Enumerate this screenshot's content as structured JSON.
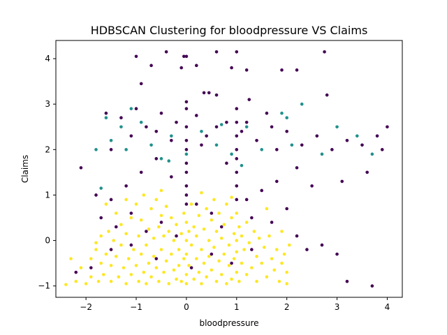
{
  "chart_data": {
    "type": "scatter",
    "title": "HDBSCAN Clustering for bloodpressure VS Claims",
    "xlabel": "bloodpressure",
    "ylabel": "Claims",
    "xlim": [
      -2.6,
      4.3
    ],
    "ylim": [
      -1.25,
      4.4
    ],
    "xticks": [
      -2,
      -1,
      0,
      1,
      2,
      3,
      4
    ],
    "yticks": [
      -1,
      0,
      1,
      2,
      3,
      4
    ],
    "grid": false,
    "legend": "none",
    "colors": {
      "noise": "#440154",
      "cluster_a": "#21918c",
      "cluster_b": "#fde725"
    },
    "series": [
      {
        "color_key": "cluster_b",
        "points": [
          [
            -2.4,
            -0.97
          ],
          [
            -2.2,
            -0.9
          ],
          [
            -2.1,
            -0.6
          ],
          [
            -2.0,
            -0.95
          ],
          [
            -1.9,
            -0.4
          ],
          [
            -1.9,
            -0.8
          ],
          [
            -1.8,
            -0.2
          ],
          [
            -1.75,
            -0.9
          ],
          [
            -1.7,
            -0.5
          ],
          [
            -1.7,
            0.1
          ],
          [
            -1.65,
            -0.75
          ],
          [
            -1.6,
            -0.3
          ],
          [
            -1.55,
            0.2
          ],
          [
            -1.5,
            -0.9
          ],
          [
            -1.5,
            -0.55
          ],
          [
            -1.45,
            0.0
          ],
          [
            -1.4,
            -0.35
          ],
          [
            -1.4,
            0.6
          ],
          [
            -1.35,
            -0.8
          ],
          [
            -1.3,
            -0.1
          ],
          [
            -1.3,
            0.35
          ],
          [
            -1.25,
            -0.6
          ],
          [
            -1.2,
            -0.95
          ],
          [
            -1.2,
            0.15
          ],
          [
            -1.15,
            -0.4
          ],
          [
            -1.1,
            -0.75
          ],
          [
            -1.1,
            0.5
          ],
          [
            -1.05,
            -0.2
          ],
          [
            -1.0,
            0.8
          ],
          [
            -1.0,
            -0.55
          ],
          [
            -0.95,
            -0.9
          ],
          [
            -0.95,
            0.1
          ],
          [
            -0.9,
            -0.3
          ],
          [
            -0.9,
            0.45
          ],
          [
            -0.85,
            -0.7
          ],
          [
            -0.85,
            1.0
          ],
          [
            -0.8,
            -0.1
          ],
          [
            -0.8,
            -0.95
          ],
          [
            -0.75,
            0.25
          ],
          [
            -0.75,
            -0.5
          ],
          [
            -0.7,
            0.7
          ],
          [
            -0.7,
            -0.8
          ],
          [
            -0.65,
            0.05
          ],
          [
            -0.65,
            -0.35
          ],
          [
            -0.6,
            0.9
          ],
          [
            -0.6,
            -0.6
          ],
          [
            -0.55,
            0.3
          ],
          [
            -0.55,
            -0.9
          ],
          [
            -0.5,
            -0.2
          ],
          [
            -0.5,
            0.55
          ],
          [
            -0.45,
            -0.7
          ],
          [
            -0.45,
            0.1
          ],
          [
            -0.4,
            -0.45
          ],
          [
            -0.4,
            0.75
          ],
          [
            -0.35,
            -0.95
          ],
          [
            -0.35,
            0.2
          ],
          [
            -0.3,
            -0.3
          ],
          [
            -0.3,
            0.5
          ],
          [
            -0.25,
            -0.65
          ],
          [
            -0.25,
            0.0
          ],
          [
            -0.2,
            -0.85
          ],
          [
            -0.2,
            0.35
          ],
          [
            -0.15,
            -0.2
          ],
          [
            -0.15,
            -0.55
          ],
          [
            -0.1,
            0.15
          ],
          [
            -0.1,
            -0.9
          ],
          [
            -0.05,
            -0.4
          ],
          [
            -0.05,
            0.6
          ],
          [
            0.0,
            -0.75
          ],
          [
            0.0,
            0.0
          ],
          [
            0.0,
            -0.3
          ],
          [
            0.0,
            0.4
          ],
          [
            0.0,
            -0.95
          ],
          [
            0.05,
            0.2
          ],
          [
            0.05,
            -0.55
          ],
          [
            0.1,
            -0.1
          ],
          [
            0.1,
            0.8
          ],
          [
            0.15,
            -0.85
          ],
          [
            0.15,
            0.3
          ],
          [
            0.2,
            -0.4
          ],
          [
            0.2,
            0.1
          ],
          [
            0.25,
            -0.7
          ],
          [
            0.25,
            0.55
          ],
          [
            0.3,
            -0.2
          ],
          [
            0.3,
            -0.95
          ],
          [
            0.35,
            0.25
          ],
          [
            0.35,
            -0.5
          ],
          [
            0.4,
            0.7
          ],
          [
            0.4,
            -0.8
          ],
          [
            0.45,
            0.0
          ],
          [
            0.45,
            -0.35
          ],
          [
            0.5,
            0.45
          ],
          [
            0.5,
            -0.65
          ],
          [
            0.55,
            -0.15
          ],
          [
            0.55,
            0.9
          ],
          [
            0.6,
            -0.9
          ],
          [
            0.6,
            0.2
          ],
          [
            0.65,
            -0.45
          ],
          [
            0.65,
            0.6
          ],
          [
            0.7,
            -0.75
          ],
          [
            0.7,
            0.05
          ],
          [
            0.75,
            -0.3
          ],
          [
            0.75,
            0.35
          ],
          [
            0.8,
            -0.95
          ],
          [
            0.8,
            0.8
          ],
          [
            0.85,
            -0.1
          ],
          [
            0.85,
            -0.55
          ],
          [
            0.9,
            0.5
          ],
          [
            0.9,
            -0.85
          ],
          [
            0.95,
            0.15
          ],
          [
            0.95,
            -0.4
          ],
          [
            1.0,
            -0.7
          ],
          [
            1.0,
            0.0
          ],
          [
            1.0,
            0.6
          ],
          [
            1.0,
            -0.25
          ],
          [
            1.05,
            0.3
          ],
          [
            1.05,
            -0.9
          ],
          [
            1.1,
            -0.5
          ],
          [
            1.1,
            0.1
          ],
          [
            1.15,
            -0.2
          ],
          [
            1.2,
            0.4
          ],
          [
            1.2,
            -0.75
          ],
          [
            1.25,
            -0.05
          ],
          [
            1.3,
            -0.6
          ],
          [
            1.35,
            0.2
          ],
          [
            1.4,
            -0.35
          ],
          [
            1.4,
            -0.9
          ],
          [
            1.45,
            0.05
          ],
          [
            1.5,
            -0.5
          ],
          [
            1.55,
            -0.15
          ],
          [
            1.6,
            -0.8
          ],
          [
            1.65,
            0.1
          ],
          [
            1.7,
            -0.4
          ],
          [
            1.75,
            -0.65
          ],
          [
            1.8,
            -0.2
          ],
          [
            1.85,
            -0.9
          ],
          [
            1.9,
            -0.5
          ],
          [
            1.95,
            -0.3
          ],
          [
            2.0,
            -0.95
          ],
          [
            2.0,
            -0.7
          ],
          [
            -1.6,
            0.8
          ],
          [
            -1.2,
            0.9
          ],
          [
            -0.5,
            1.1
          ],
          [
            0.3,
            1.05
          ],
          [
            0.9,
            0.95
          ],
          [
            1.6,
            0.7
          ],
          [
            -1.8,
            -0.05
          ],
          [
            -2.3,
            -0.4
          ],
          [
            1.9,
            0.2
          ],
          [
            2.05,
            -0.1
          ]
        ]
      },
      {
        "color_key": "noise",
        "points": [
          [
            -1.0,
            4.05
          ],
          [
            -0.7,
            3.85
          ],
          [
            -0.4,
            4.15
          ],
          [
            -0.1,
            3.8
          ],
          [
            -0.05,
            4.05
          ],
          [
            0.0,
            4.05
          ],
          [
            0.2,
            3.85
          ],
          [
            0.6,
            4.15
          ],
          [
            0.9,
            3.8
          ],
          [
            1.0,
            4.15
          ],
          [
            1.2,
            3.75
          ],
          [
            1.9,
            3.75
          ],
          [
            2.2,
            3.75
          ],
          [
            2.75,
            4.15
          ],
          [
            -0.9,
            3.45
          ],
          [
            0.35,
            3.25
          ],
          [
            0.45,
            3.25
          ],
          [
            0.6,
            3.2
          ],
          [
            1.25,
            3.1
          ],
          [
            2.8,
            3.2
          ],
          [
            -1.6,
            2.8
          ],
          [
            -1.3,
            2.7
          ],
          [
            -1.0,
            2.9
          ],
          [
            -0.8,
            2.5
          ],
          [
            -0.5,
            2.8
          ],
          [
            -0.2,
            2.6
          ],
          [
            0.0,
            2.9
          ],
          [
            0.0,
            2.0
          ],
          [
            0.0,
            1.7
          ],
          [
            0.0,
            1.5
          ],
          [
            0.0,
            1.2
          ],
          [
            0.0,
            3.05
          ],
          [
            0.2,
            2.75
          ],
          [
            0.4,
            2.3
          ],
          [
            0.6,
            2.5
          ],
          [
            0.8,
            2.6
          ],
          [
            1.0,
            2.9
          ],
          [
            1.0,
            2.0
          ],
          [
            1.0,
            1.5
          ],
          [
            1.0,
            1.2
          ],
          [
            1.0,
            0.9
          ],
          [
            1.2,
            2.6
          ],
          [
            1.4,
            2.2
          ],
          [
            1.6,
            2.8
          ],
          [
            1.8,
            2.0
          ],
          [
            2.0,
            2.4
          ],
          [
            2.3,
            2.1
          ],
          [
            2.6,
            2.3
          ],
          [
            2.9,
            2.0
          ],
          [
            3.2,
            2.2
          ],
          [
            3.5,
            2.1
          ],
          [
            3.8,
            2.3
          ],
          [
            4.0,
            2.5
          ],
          [
            3.6,
            1.5
          ],
          [
            3.1,
            1.3
          ],
          [
            2.5,
            1.2
          ],
          [
            2.2,
            1.6
          ],
          [
            1.8,
            1.3
          ],
          [
            1.5,
            1.1
          ],
          [
            1.2,
            0.9
          ],
          [
            -2.1,
            1.6
          ],
          [
            -1.8,
            1.0
          ],
          [
            -1.5,
            0.9
          ],
          [
            -1.2,
            1.2
          ],
          [
            -0.9,
            1.5
          ],
          [
            -0.6,
            1.8
          ],
          [
            -0.3,
            1.4
          ],
          [
            -1.7,
            0.5
          ],
          [
            -1.4,
            0.3
          ],
          [
            -1.1,
            0.6
          ],
          [
            -0.8,
            0.2
          ],
          [
            -0.5,
            0.4
          ],
          [
            -0.2,
            0.1
          ],
          [
            0.2,
            0.8
          ],
          [
            0.5,
            0.6
          ],
          [
            0.7,
            0.3
          ],
          [
            1.3,
            0.5
          ],
          [
            1.7,
            0.4
          ],
          [
            2.0,
            0.7
          ],
          [
            2.4,
            -0.2
          ],
          [
            2.7,
            -0.1
          ],
          [
            3.0,
            -0.3
          ],
          [
            3.2,
            -0.9
          ],
          [
            3.7,
            -1.0
          ],
          [
            -2.2,
            -0.7
          ],
          [
            -1.9,
            -0.6
          ],
          [
            -1.5,
            -0.2
          ],
          [
            -1.1,
            -0.1
          ],
          [
            -0.6,
            -0.4
          ],
          [
            0.1,
            -0.6
          ],
          [
            0.5,
            -0.3
          ],
          [
            0.9,
            -0.5
          ],
          [
            1.3,
            -0.2
          ],
          [
            2.2,
            0.1
          ],
          [
            1.1,
            2.4
          ],
          [
            0.3,
            2.1
          ],
          [
            -0.3,
            2.2
          ],
          [
            -1.1,
            2.3
          ],
          [
            -1.5,
            2.0
          ],
          [
            3.9,
            2.0
          ],
          [
            1.0,
            2.6
          ],
          [
            1.0,
            2.3
          ],
          [
            1.0,
            1.8
          ],
          [
            0.0,
            2.5
          ],
          [
            0.0,
            2.2
          ],
          [
            0.0,
            1.0
          ],
          [
            0.0,
            0.8
          ],
          [
            -0.6,
            2.4
          ],
          [
            0.8,
            1.7
          ],
          [
            1.7,
            2.5
          ]
        ]
      },
      {
        "color_key": "cluster_a",
        "points": [
          [
            -1.8,
            2.0
          ],
          [
            -1.6,
            2.7
          ],
          [
            -1.5,
            2.2
          ],
          [
            -1.3,
            2.5
          ],
          [
            -1.1,
            2.9
          ],
          [
            -0.9,
            2.6
          ],
          [
            -0.7,
            2.1
          ],
          [
            -0.5,
            1.8
          ],
          [
            -0.3,
            2.3
          ],
          [
            0.0,
            1.9
          ],
          [
            0.3,
            2.4
          ],
          [
            0.6,
            2.1
          ],
          [
            0.9,
            1.9
          ],
          [
            1.2,
            2.5
          ],
          [
            1.5,
            2.0
          ],
          [
            1.9,
            2.8
          ],
          [
            2.1,
            2.1
          ],
          [
            2.3,
            3.0
          ],
          [
            2.7,
            1.9
          ],
          [
            3.0,
            2.5
          ],
          [
            3.4,
            2.3
          ],
          [
            3.7,
            1.9
          ],
          [
            -1.7,
            1.15
          ],
          [
            -0.35,
            1.75
          ],
          [
            0.7,
            2.55
          ],
          [
            2.0,
            2.7
          ],
          [
            1.1,
            1.65
          ],
          [
            -1.2,
            2.0
          ]
        ]
      }
    ]
  }
}
